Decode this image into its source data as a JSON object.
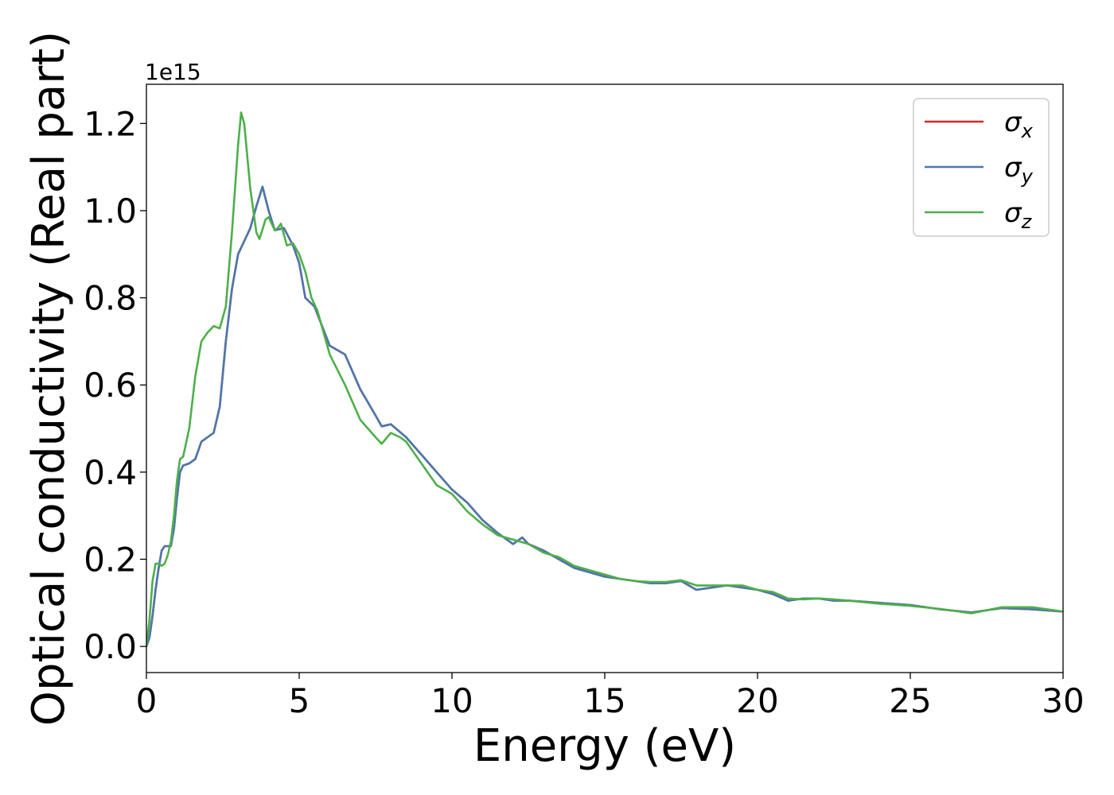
{
  "chart_data": {
    "type": "line",
    "xlabel": "Energy (eV)",
    "ylabel": "Optical conductivity (Real part)",
    "y_offset_text": "1e15",
    "xlim": [
      0,
      30
    ],
    "ylim": [
      -0.06,
      1.29
    ],
    "xticks": [
      0,
      5,
      10,
      15,
      20,
      25,
      30
    ],
    "xtick_labels": [
      "0",
      "5",
      "10",
      "15",
      "20",
      "25",
      "30"
    ],
    "yticks": [
      0.0,
      0.2,
      0.4,
      0.6,
      0.8,
      1.0,
      1.2
    ],
    "ytick_labels": [
      "0.0",
      "0.2",
      "0.4",
      "0.6",
      "0.8",
      "1.0",
      "1.2"
    ],
    "grid": false,
    "legend_position": "top-right",
    "series": [
      {
        "name": "σ",
        "subscript": "x",
        "color": "#d62728",
        "x": [
          0,
          0.1,
          0.2,
          0.3,
          0.4,
          0.5,
          0.6,
          0.8,
          0.9,
          1.0,
          1.1,
          1.2,
          1.4,
          1.6,
          1.8,
          2.0,
          2.2,
          2.4,
          2.6,
          2.8,
          3.0,
          3.2,
          3.4,
          3.6,
          3.8,
          4.0,
          4.2,
          4.5,
          4.8,
          5.0,
          5.2,
          5.5,
          6.0,
          6.5,
          7.0,
          7.5,
          7.7,
          8.0,
          8.5,
          9.0,
          9.5,
          10.0,
          10.5,
          11.0,
          11.5,
          12.0,
          12.3,
          12.5,
          13.0,
          13.5,
          14.0,
          14.5,
          15.0,
          15.5,
          16.0,
          16.5,
          17.0,
          17.5,
          18.0,
          18.5,
          19.0,
          19.5,
          20.0,
          20.5,
          21.0,
          21.5,
          22.0,
          22.5,
          23.0,
          24.0,
          25.0,
          26.0,
          27.0,
          28.0,
          29.0,
          30.0
        ],
        "y": [
          0.0,
          0.02,
          0.07,
          0.13,
          0.18,
          0.22,
          0.23,
          0.23,
          0.27,
          0.34,
          0.4,
          0.415,
          0.42,
          0.43,
          0.47,
          0.48,
          0.49,
          0.55,
          0.7,
          0.82,
          0.9,
          0.93,
          0.96,
          1.01,
          1.055,
          1.0,
          0.955,
          0.96,
          0.92,
          0.88,
          0.8,
          0.78,
          0.69,
          0.67,
          0.59,
          0.53,
          0.505,
          0.51,
          0.48,
          0.44,
          0.4,
          0.36,
          0.33,
          0.29,
          0.26,
          0.235,
          0.25,
          0.235,
          0.22,
          0.2,
          0.18,
          0.17,
          0.16,
          0.155,
          0.15,
          0.145,
          0.145,
          0.15,
          0.13,
          0.135,
          0.14,
          0.135,
          0.13,
          0.12,
          0.105,
          0.11,
          0.11,
          0.105,
          0.105,
          0.1,
          0.095,
          0.085,
          0.078,
          0.088,
          0.085,
          0.08
        ]
      },
      {
        "name": "σ",
        "subscript": "y",
        "color": "#4a78ad",
        "x": [
          0,
          0.1,
          0.2,
          0.3,
          0.4,
          0.5,
          0.6,
          0.8,
          0.9,
          1.0,
          1.1,
          1.2,
          1.4,
          1.6,
          1.8,
          2.0,
          2.2,
          2.4,
          2.6,
          2.8,
          3.0,
          3.2,
          3.4,
          3.6,
          3.8,
          4.0,
          4.2,
          4.5,
          4.8,
          5.0,
          5.2,
          5.5,
          6.0,
          6.5,
          7.0,
          7.5,
          7.7,
          8.0,
          8.5,
          9.0,
          9.5,
          10.0,
          10.5,
          11.0,
          11.5,
          12.0,
          12.3,
          12.5,
          13.0,
          13.5,
          14.0,
          14.5,
          15.0,
          15.5,
          16.0,
          16.5,
          17.0,
          17.5,
          18.0,
          18.5,
          19.0,
          19.5,
          20.0,
          20.5,
          21.0,
          21.5,
          22.0,
          22.5,
          23.0,
          24.0,
          25.0,
          26.0,
          27.0,
          28.0,
          29.0,
          30.0
        ],
        "y": [
          0.0,
          0.02,
          0.07,
          0.13,
          0.18,
          0.22,
          0.23,
          0.23,
          0.27,
          0.34,
          0.4,
          0.415,
          0.42,
          0.43,
          0.47,
          0.48,
          0.49,
          0.55,
          0.7,
          0.82,
          0.9,
          0.93,
          0.96,
          1.01,
          1.055,
          1.0,
          0.955,
          0.96,
          0.92,
          0.88,
          0.8,
          0.78,
          0.69,
          0.67,
          0.59,
          0.53,
          0.505,
          0.51,
          0.48,
          0.44,
          0.4,
          0.36,
          0.33,
          0.29,
          0.26,
          0.235,
          0.25,
          0.235,
          0.22,
          0.2,
          0.18,
          0.17,
          0.16,
          0.155,
          0.15,
          0.145,
          0.145,
          0.15,
          0.13,
          0.135,
          0.14,
          0.135,
          0.13,
          0.12,
          0.105,
          0.11,
          0.11,
          0.105,
          0.105,
          0.1,
          0.095,
          0.085,
          0.078,
          0.088,
          0.085,
          0.08
        ]
      },
      {
        "name": "σ",
        "subscript": "z",
        "color": "#4daf4a",
        "x": [
          0,
          0.1,
          0.2,
          0.3,
          0.4,
          0.5,
          0.6,
          0.7,
          0.8,
          0.9,
          1.0,
          1.1,
          1.2,
          1.4,
          1.6,
          1.8,
          2.0,
          2.2,
          2.4,
          2.6,
          2.8,
          3.0,
          3.1,
          3.2,
          3.4,
          3.6,
          3.7,
          3.9,
          4.0,
          4.2,
          4.3,
          4.4,
          4.6,
          4.8,
          5.0,
          5.2,
          5.4,
          5.6,
          6.0,
          6.5,
          7.0,
          7.5,
          7.7,
          8.0,
          8.3,
          8.5,
          9.0,
          9.5,
          10.0,
          10.5,
          11.0,
          11.5,
          12.0,
          12.5,
          13.0,
          13.5,
          14.0,
          14.5,
          15.0,
          15.5,
          16.0,
          16.5,
          17.0,
          17.5,
          18.0,
          18.5,
          19.0,
          19.5,
          20.0,
          20.5,
          21.0,
          21.5,
          22.0,
          22.5,
          23.0,
          24.0,
          25.0,
          26.0,
          27.0,
          28.0,
          29.0,
          30.0
        ],
        "y": [
          0.0,
          0.06,
          0.15,
          0.19,
          0.19,
          0.185,
          0.19,
          0.21,
          0.24,
          0.3,
          0.38,
          0.43,
          0.435,
          0.5,
          0.62,
          0.7,
          0.72,
          0.735,
          0.73,
          0.78,
          0.95,
          1.15,
          1.225,
          1.2,
          1.05,
          0.95,
          0.935,
          0.98,
          0.985,
          0.955,
          0.96,
          0.97,
          0.92,
          0.925,
          0.9,
          0.86,
          0.8,
          0.77,
          0.67,
          0.6,
          0.52,
          0.48,
          0.465,
          0.49,
          0.48,
          0.47,
          0.42,
          0.37,
          0.35,
          0.31,
          0.28,
          0.255,
          0.245,
          0.235,
          0.215,
          0.205,
          0.185,
          0.175,
          0.165,
          0.155,
          0.15,
          0.148,
          0.148,
          0.152,
          0.14,
          0.14,
          0.14,
          0.14,
          0.13,
          0.125,
          0.11,
          0.108,
          0.11,
          0.108,
          0.105,
          0.098,
          0.093,
          0.086,
          0.076,
          0.09,
          0.09,
          0.08
        ]
      }
    ]
  }
}
